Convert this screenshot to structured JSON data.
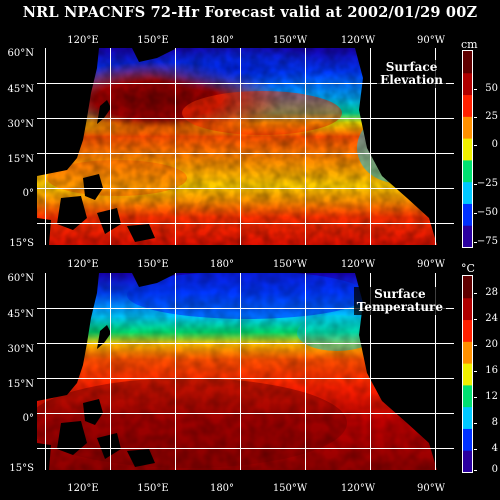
{
  "title": "NRL NPACNFS 72-Hr Forecast valid at 2002/01/29 00Z",
  "top_panel": {
    "label_line1": "Surface",
    "label_line2": "Elevation",
    "unit": "cm",
    "colorbar_ticks": [
      "50",
      "25",
      "0",
      "−25",
      "−50",
      "−75"
    ],
    "colors": [
      "#2b00a0",
      "#0030ff",
      "#00c8ff",
      "#00e070",
      "#f0f000",
      "#ff9000",
      "#ff2000",
      "#b00000",
      "#600000"
    ]
  },
  "bottom_panel": {
    "label_line1": "Surface",
    "label_line2": "Temperature",
    "unit": "°C",
    "colorbar_ticks": [
      "28",
      "24",
      "20",
      "16",
      "12",
      "8",
      "4",
      "0"
    ],
    "colors": [
      "#2b00a0",
      "#0030ff",
      "#00c8ff",
      "#00e070",
      "#f0f000",
      "#ff9000",
      "#ff2000",
      "#b00000",
      "#600000"
    ]
  },
  "axes": {
    "lat_labels": [
      "60°N",
      "45°N",
      "30°N",
      "15°N",
      "0°",
      "15°S"
    ],
    "lon_labels": [
      "120°E",
      "150°E",
      "180°",
      "150°W",
      "120°W",
      "90°W"
    ]
  }
}
